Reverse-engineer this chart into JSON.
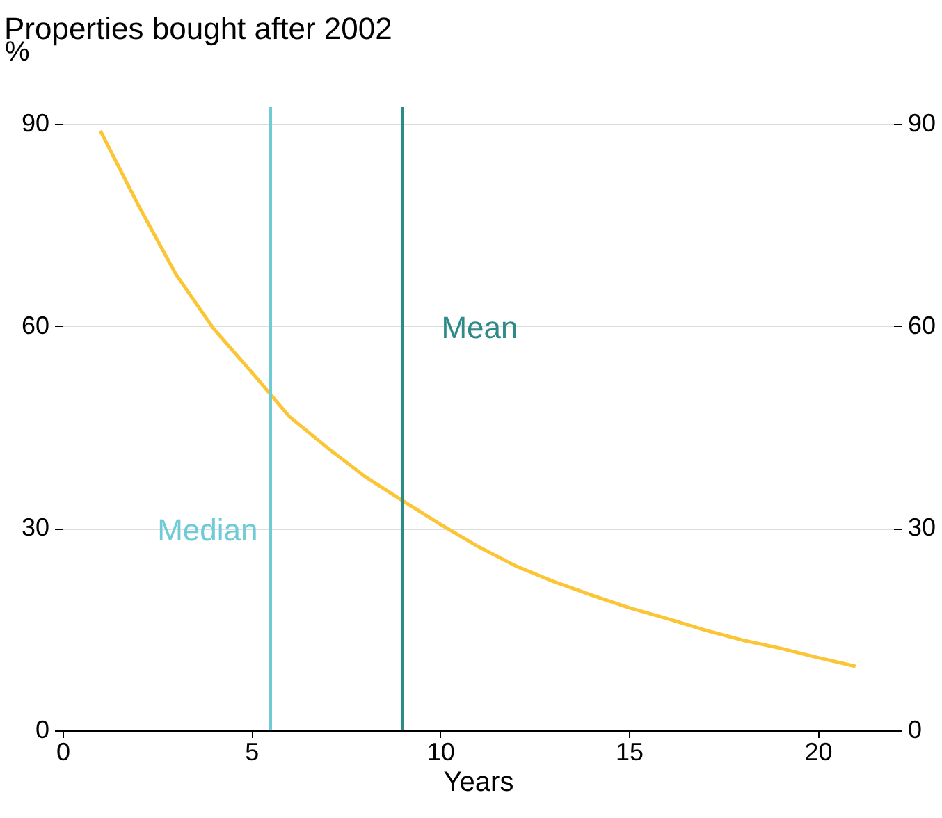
{
  "chart_data": {
    "type": "line",
    "title": "Properties bought after 2002",
    "ylabel": "%",
    "xlabel": "Years",
    "x": [
      1,
      2,
      3,
      4,
      5,
      6,
      7,
      8,
      9,
      10,
      11,
      12,
      13,
      14,
      15,
      16,
      17,
      18,
      19,
      20,
      21
    ],
    "series": [
      {
        "color": "#fcc535",
        "values": [
          89,
          78,
          67.7,
          59.6,
          53.2,
          46.6,
          42,
          37.7,
          34.1,
          30.6,
          27.3,
          24.4,
          22.1,
          20.1,
          18.2,
          16.6,
          14.9,
          13.4,
          12.2,
          10.8,
          9.5
        ]
      }
    ],
    "xlim": [
      0,
      22
    ],
    "xticks": [
      0,
      5,
      10,
      15,
      20
    ],
    "ylim": [
      0,
      92.5
    ],
    "yticks": [
      0,
      30,
      60,
      90
    ],
    "y2lim": [
      0,
      92.5
    ],
    "y2ticks": [
      0,
      30,
      60,
      90
    ],
    "ref_lines": [
      {
        "axis": "x",
        "value": 5.5,
        "label": "Median",
        "color": "#6fcbd6"
      },
      {
        "axis": "x",
        "value": 9,
        "label": "Mean",
        "color": "#2e8a86"
      }
    ],
    "grid": "y",
    "marker": "none",
    "line_style": "solid"
  }
}
